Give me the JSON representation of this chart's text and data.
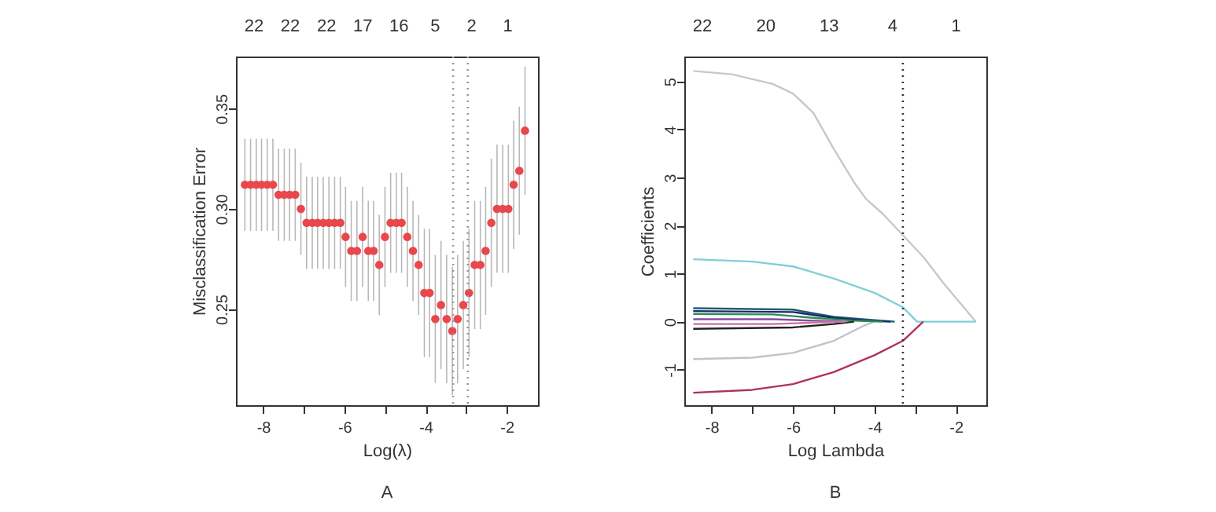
{
  "chart_data": [
    {
      "type": "scatter",
      "xlabel": "Log(λ)",
      "ylabel": "Misclassification Error",
      "annotations": [
        "A",
        "22",
        "22",
        "22",
        "17",
        "16",
        "5",
        "2",
        "1"
      ],
      "xlim": [
        -8.67,
        -1.23
      ],
      "xticks": [
        -8,
        {
          "value": -7,
          "label": null
        },
        -6,
        {
          "value": -5,
          "label": null
        },
        -4,
        {
          "value": -3,
          "label": null
        },
        -2
      ],
      "ylim": [
        0.202,
        0.376
      ],
      "yticks": [
        {
          "value": 0.25,
          "label": "0.25"
        },
        {
          "value": 0.3,
          "label": "0.30"
        },
        {
          "value": 0.35,
          "label": "0.35"
        }
      ],
      "marker": "circle",
      "x": [
        -8.45,
        -8.31,
        -8.17,
        -8.04,
        -7.9,
        -7.76,
        -7.62,
        -7.48,
        -7.35,
        -7.21,
        -7.07,
        -6.93,
        -6.79,
        -6.66,
        -6.52,
        -6.38,
        -6.24,
        -6.1,
        -5.97,
        -5.83,
        -5.69,
        -5.55,
        -5.41,
        -5.28,
        -5.14,
        -5.0,
        -4.86,
        -4.72,
        -4.59,
        -4.45,
        -4.31,
        -4.17,
        -4.03,
        -3.9,
        -3.76,
        -3.62,
        -3.48,
        -3.34,
        -3.21,
        -3.07,
        -2.93,
        -2.79,
        -2.65,
        -2.52,
        -2.38,
        -2.24,
        -2.1,
        -1.96,
        -1.83,
        -1.69,
        -1.55
      ],
      "series": [
        {
          "color": "#e8474c",
          "values": [
            0.312,
            0.312,
            0.312,
            0.312,
            0.312,
            0.312,
            0.307,
            0.307,
            0.307,
            0.307,
            0.3,
            0.293,
            0.293,
            0.293,
            0.293,
            0.293,
            0.293,
            0.293,
            0.286,
            0.279,
            0.279,
            0.286,
            0.279,
            0.279,
            0.272,
            0.286,
            0.293,
            0.293,
            0.293,
            0.286,
            0.279,
            0.272,
            0.258,
            0.258,
            0.245,
            0.252,
            0.245,
            0.239,
            0.245,
            0.252,
            0.258,
            0.272,
            0.272,
            0.279,
            0.293,
            0.3,
            0.3,
            0.3,
            0.312,
            0.319,
            0.339
          ],
          "errors": [
            0.023,
            0.023,
            0.023,
            0.023,
            0.023,
            0.023,
            0.023,
            0.023,
            0.023,
            0.023,
            0.023,
            0.023,
            0.023,
            0.023,
            0.023,
            0.023,
            0.023,
            0.023,
            0.025,
            0.025,
            0.025,
            0.025,
            0.025,
            0.025,
            0.025,
            0.025,
            0.025,
            0.025,
            0.025,
            0.025,
            0.025,
            0.025,
            0.032,
            0.032,
            0.032,
            0.032,
            0.032,
            0.032,
            0.032,
            0.032,
            0.032,
            0.032,
            0.032,
            0.032,
            0.032,
            0.032,
            0.032,
            0.032,
            0.032,
            0.032,
            0.032
          ]
        }
      ],
      "ref_lines": [
        {
          "axis": "x",
          "value": -3.32,
          "color": "#999999",
          "line_style": "dotted"
        },
        {
          "axis": "x",
          "value": -2.96,
          "color": "#999999",
          "line_style": "dotted"
        }
      ]
    },
    {
      "type": "line",
      "xlabel": "Log Lambda",
      "ylabel": "Coefficients",
      "annotations": [
        "B",
        "22",
        "20",
        "13",
        "4",
        "1"
      ],
      "xlim": [
        -8.67,
        -1.25
      ],
      "xticks": [
        -8,
        {
          "value": -7,
          "label": null
        },
        -6,
        {
          "value": -5,
          "label": null
        },
        -4,
        {
          "value": -3,
          "label": null
        },
        -2
      ],
      "ylim": [
        -1.74,
        5.52
      ],
      "yticks": [
        -1,
        0,
        1,
        2,
        3,
        4,
        5
      ],
      "series": [
        {
          "color": "#c8c8c8",
          "x": [
            -8.45,
            -7.5,
            -6.5,
            -6,
            -5.5,
            -5,
            -4.5,
            -4.2,
            -3.8,
            -3.3,
            -2.8,
            -2.3,
            -1.51
          ],
          "values": [
            5.22,
            5.15,
            4.95,
            4.75,
            4.35,
            3.6,
            2.9,
            2.55,
            2.25,
            1.8,
            1.35,
            0.8,
            0
          ]
        },
        {
          "color": "#7fd0d8",
          "x": [
            -8.45,
            -7,
            -6,
            -5,
            -4,
            -3.3,
            -2.95,
            -1.51
          ],
          "values": [
            1.3,
            1.25,
            1.15,
            0.9,
            0.6,
            0.3,
            0,
            0
          ]
        },
        {
          "color": "#c4c0cc",
          "x": [
            -8.45,
            -7,
            -6,
            -5,
            -4.3,
            -4
          ],
          "values": [
            -0.78,
            -0.75,
            -0.65,
            -0.4,
            -0.1,
            0
          ]
        },
        {
          "color": "#b03060",
          "x": [
            -8.45,
            -7,
            -6,
            -5,
            -4,
            -3.3,
            -2.8
          ],
          "values": [
            -1.48,
            -1.42,
            -1.3,
            -1.05,
            -0.7,
            -0.4,
            0
          ]
        },
        {
          "color": "#1f5f6f",
          "x": [
            -8.45,
            -6,
            -5,
            -4,
            -3.5
          ],
          "values": [
            0.28,
            0.25,
            0.1,
            0.03,
            0
          ]
        },
        {
          "color": "#1a2a6a",
          "x": [
            -8.45,
            -6,
            -5,
            -4.2,
            -3.6
          ],
          "values": [
            0.22,
            0.2,
            0.08,
            0.02,
            0
          ]
        },
        {
          "color": "#2e8b57",
          "x": [
            -8.45,
            -6.5,
            -5.5,
            -4.5,
            -3.8
          ],
          "values": [
            0.16,
            0.15,
            0.08,
            0.02,
            0
          ]
        },
        {
          "color": "#8050a0",
          "x": [
            -8.45,
            -6.5,
            -5.5,
            -4.8
          ],
          "values": [
            0.05,
            0.05,
            0.02,
            0
          ]
        },
        {
          "color": "#222222",
          "x": [
            -8.45,
            -6,
            -5,
            -4.5
          ],
          "values": [
            -0.15,
            -0.12,
            -0.05,
            0
          ]
        },
        {
          "color": "#d070a0",
          "x": [
            -8.45,
            -6.5,
            -5.5,
            -4.7
          ],
          "values": [
            -0.05,
            -0.05,
            -0.02,
            0
          ]
        }
      ],
      "ref_lines": [
        {
          "axis": "x",
          "value": -3.3,
          "color": "#333333",
          "line_style": "dotted"
        }
      ]
    }
  ]
}
